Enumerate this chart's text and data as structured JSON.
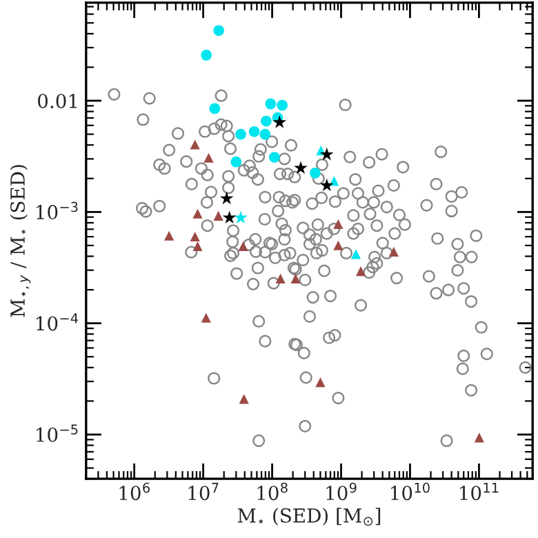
{
  "chart_data": {
    "type": "scatter",
    "xlabel": "M$_{⋆}$ (SED) [M$_{⊙}$]",
    "ylabel": "M$_{⋆,y}$ / M$_{⋆}$ (SED)",
    "log": "xy",
    "grid": false,
    "legend": false,
    "xlim": [
      200000.0,
      600000000000.0
    ],
    "ylim": [
      4e-06,
      0.076
    ],
    "xticks": [
      {
        "value": 1000000.0,
        "label": "10$^{6}$"
      },
      {
        "value": 10000000.0,
        "label": "10$^{7}$"
      },
      {
        "value": 100000000.0,
        "label": "10$^{8}$"
      },
      {
        "value": 1000000000.0,
        "label": "10$^{9}$"
      },
      {
        "value": 10000000000.0,
        "label": "10$^{10}$"
      },
      {
        "value": 100000000000.0,
        "label": "10$^{11}$"
      }
    ],
    "yticks": [
      {
        "value": 1e-05,
        "label": "10$^{−5}$"
      },
      {
        "value": 0.0001,
        "label": "10$^{−4}$"
      },
      {
        "value": 0.001,
        "label": "10$^{−3}$"
      },
      {
        "value": 0.01,
        "label": "0.01"
      }
    ],
    "series": [
      {
        "marker": "circle",
        "color": "#888888",
        "x": [
          510000.0,
          1660000.0,
          1340000.0,
          18200000.0,
          4300000.0,
          10600000.0,
          14500000.0,
          18200000.0,
          21900000.0,
          23200000.0,
          3200000.0,
          24800000.0,
          5700000.0,
          2320000.0,
          2750000.0,
          9400000.0,
          11500000.0,
          6800000.0,
          23200000.0,
          23200000.0,
          13000000.0,
          11300000.0,
          2320000.0,
          1300000.0,
          1470000.0,
          11500000.0,
          27200000.0,
          39000000.0,
          47000000.0,
          52000000.0,
          68000000.0,
          99000000.0,
          188000000.0,
          64000000.0,
          79000000.0,
          130000000.0,
          168000000.0,
          126000000.0,
          156000000.0,
          78000000.0,
          122000000.0,
          197000000.0,
          138000000.0,
          156000000.0,
          99000000.0,
          57000000.0,
          26700000.0,
          62000000.0,
          1150000000.0,
          1340000000.0,
          2550000000.0,
          3900000000.0,
          7900000000.0,
          28000000000.0,
          151000000.0,
          530000000.0,
          212000000.0,
          470000000.0,
          1610000000.0,
          5800000000.0,
          3470000000.0,
          1080000000.0,
          1760000000.0,
          820000000.0,
          520000000.0,
          212000000.0,
          380000000.0,
          2060000000.0,
          2980000000.0,
          4600000000.0,
          7000000000.0,
          2630000000.0,
          1510000000.0,
          17400000000.0,
          24000000000.0,
          40000000000.0,
          56000000000.0,
          40000000000.0,
          460000000.0,
          280000000.0,
          790000000.0,
          1760000000.0,
          3300000000.0,
          8400000000.0,
          6000000000.0,
          4000000000.0,
          1510000000.0,
          430000000.0,
          350000000.0,
          25000000000.0,
          49000000000.0,
          91000000000.0,
          620000000.0,
          151000000.0,
          53000000000.0,
          78000000000.0,
          49000000000.0,
          18800000000.0,
          24000000000.0,
          36000000000.0,
          60000000000.0,
          77000000000.0,
          6400000000.0,
          3060000000.0,
          3300000000.0,
          2880000000.0,
          2550000000.0,
          4600000000.0,
          1190000000.0,
          350000000.0,
          530000000.0,
          440000000.0,
          280000000.0,
          182000000.0,
          219000000.0,
          300000000.0,
          570000000.0,
          390000000.0,
          700000000.0,
          1930000000.0,
          350000000.0,
          108000000000.0,
          670000000.0,
          810000000.0,
          226000000.0,
          290000000.0,
          60000000000.0,
          130000000000.0,
          58000000000.0,
          470000000000.0,
          310000000.0,
          77000000000.0,
          910000000.0,
          300000000.0,
          34000000000.0,
          6700000.0,
          24800000.0,
          27200000.0,
          46000000.0,
          58000000.0,
          79000000.0,
          92000000.0,
          111000000.0,
          151000000.0,
          62000000.0,
          30600000.0,
          53000000.0,
          105000000.0,
          206000000.0,
          64000000.0,
          79000000.0,
          212000000.0,
          14300000.0,
          64000000.0
        ],
        "values": [
          0.0114,
          0.0105,
          0.00676,
          0.0111,
          0.00508,
          0.00528,
          0.0056,
          0.0061,
          0.00593,
          0.0048,
          0.0036,
          0.0037,
          0.00284,
          0.00266,
          0.00246,
          0.00246,
          0.00215,
          0.00178,
          0.00209,
          0.00165,
          0.00151,
          0.00122,
          0.00113,
          0.00108,
          0.00101,
          0.000755,
          0.00068,
          0.00237,
          0.0026,
          0.00226,
          0.00365,
          0.00428,
          0.00397,
          0.00316,
          0.00136,
          0.0022,
          0.0022,
          0.00136,
          0.00126,
          0.00086,
          0.00102,
          0.00122,
          0.000785,
          0.000686,
          0.000515,
          0.000568,
          0.00054,
          0.00196,
          0.00918,
          0.00312,
          0.00279,
          0.0033,
          0.00253,
          0.00347,
          0.003,
          0.00266,
          0.00206,
          0.002,
          0.00196,
          0.00173,
          0.00155,
          0.00147,
          0.00147,
          0.00124,
          0.00134,
          0.00128,
          0.00119,
          0.00122,
          0.00122,
          0.00111,
          0.00094,
          0.00096,
          0.00093,
          0.00115,
          0.00178,
          0.00138,
          0.0015,
          0.00102,
          0.00077,
          0.00072,
          0.000705,
          0.000705,
          0.000755,
          0.00077,
          0.00064,
          0.000526,
          0.00064,
          0.000568,
          0.000624,
          0.000578,
          0.000515,
          0.000612,
          0.00064,
          0.000568,
          0.000394,
          0.000394,
          0.000299,
          0.000264,
          0.000186,
          0.000199,
          0.000206,
          0.000157,
          0.000255,
          0.000394,
          0.000345,
          0.00032,
          0.000286,
          0.000427,
          0.000427,
          0.000515,
          0.000452,
          0.000427,
          0.00037,
          0.000427,
          0.000305,
          0.000245,
          0.000296,
          0.000171,
          0.000176,
          0.000145,
          0.000115,
          9.2e-05,
          7.4e-05,
          7.8e-05,
          6.4e-05,
          5.4e-05,
          5.1e-05,
          5.3e-05,
          3.9e-05,
          4e-05,
          3.25e-05,
          2.5e-05,
          2.13e-05,
          1.19e-05,
          8.8e-06,
          0.000435,
          0.000404,
          0.000427,
          0.000507,
          0.00044,
          0.000435,
          0.000526,
          0.000387,
          0.00041,
          0.000314,
          0.00028,
          0.000225,
          0.000229,
          0.000314,
          0.000104,
          6.9e-05,
          6.5e-05,
          3.2e-05,
          8.8e-06
        ]
      },
      {
        "marker": "triangle",
        "color": "#9c4a45",
        "x": [
          7600000.0,
          12000000.0,
          8300000.0,
          16600000.0,
          3200000.0,
          7600000.0,
          8300000.0,
          38000000.0,
          132000000.0,
          219000000.0,
          11000000.0,
          39000000.0,
          910000000.0,
          910000000.0,
          5800000000.0,
          1930000000.0,
          500000000.0,
          101000000000.0
        ],
        "values": [
          0.00404,
          0.00307,
          0.000966,
          0.000923,
          0.000612,
          0.000601,
          0.000492,
          0.000492,
          0.000252,
          0.000252,
          0.000112,
          2.09e-05,
          0.000778,
          0.000501,
          0.00044,
          0.000294,
          2.95e-05,
          9.4e-06
        ]
      },
      {
        "marker": "circle",
        "color": "#00e5ee",
        "x": [
          16800000.0,
          11100000.0,
          14700000.0,
          95000000.0,
          140000000.0,
          82000000.0,
          120000000.0,
          35000000.0,
          55000000.0,
          79000000.0,
          108000000.0,
          30000000.0,
          420000000.0
        ],
        "values": [
          0.0427,
          0.0257,
          0.0085,
          0.00936,
          0.0091,
          0.00656,
          0.00703,
          0.00499,
          0.00528,
          0.00499,
          0.0031,
          0.00282,
          0.00224
        ]
      },
      {
        "marker": "triangle",
        "color": "#00e5ee",
        "x": [
          510000000.0,
          790000000.0,
          1640000000.0
        ],
        "values": [
          0.00357,
          0.0019,
          0.000418
        ]
      },
      {
        "marker": "star",
        "color": "#00e5ee",
        "x": [
          35000000.0
        ],
        "values": [
          0.000887
        ]
      },
      {
        "marker": "star",
        "color": "#000000",
        "x": [
          128000000.0,
          21900000.0,
          24000000.0,
          620000000.0,
          260000000.0,
          620000000.0
        ],
        "values": [
          0.00638,
          0.00132,
          0.000887,
          0.00328,
          0.00248,
          0.00173
        ]
      }
    ]
  }
}
